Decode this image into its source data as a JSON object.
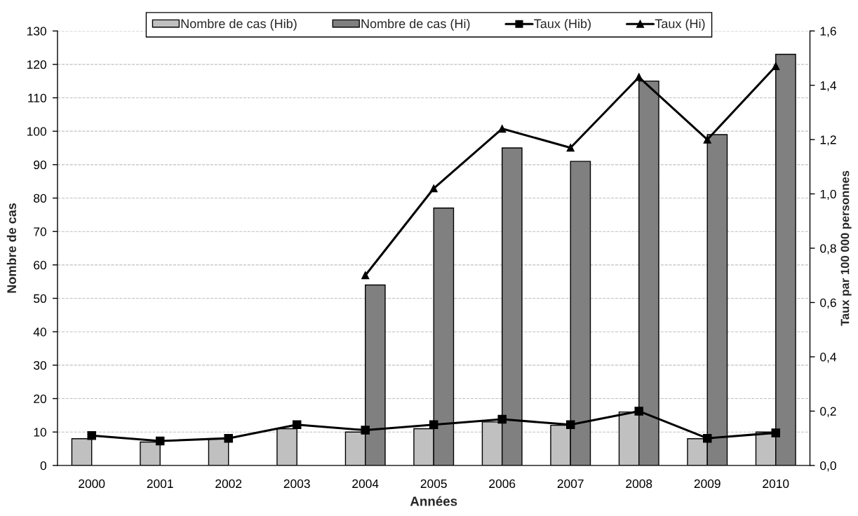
{
  "chart_data": {
    "type": "bar",
    "xlabel": "Années",
    "ylabel": "Nombre de cas",
    "y2label": "Taux par 100 000 personnes",
    "categories": [
      "2000",
      "2001",
      "2002",
      "2003",
      "2004",
      "2005",
      "2006",
      "2007",
      "2008",
      "2009",
      "2010"
    ],
    "series": [
      {
        "name": "Nombre de cas (Hib)",
        "color": "#c0c0c0",
        "values": [
          8,
          7,
          8,
          11,
          10,
          11,
          13,
          12,
          16,
          8,
          10
        ]
      },
      {
        "name": "Nombre de cas (Hi)",
        "color": "#808080",
        "values": [
          null,
          null,
          null,
          null,
          54,
          77,
          95,
          91,
          115,
          99,
          123
        ]
      },
      {
        "name": "Taux (Hib)",
        "type": "line",
        "axis": "y2",
        "color": "#000000",
        "marker": "square",
        "values": [
          0.11,
          0.09,
          0.1,
          0.15,
          0.13,
          0.15,
          0.17,
          0.15,
          0.2,
          0.1,
          0.12
        ]
      },
      {
        "name": "Taux (Hi)",
        "type": "line",
        "axis": "y2",
        "color": "#000000",
        "marker": "triangle",
        "values": [
          null,
          null,
          null,
          null,
          0.7,
          1.02,
          1.24,
          1.17,
          1.43,
          1.2,
          1.47
        ]
      }
    ],
    "ylim": [
      0,
      130
    ],
    "yticks": [
      0,
      10,
      20,
      30,
      40,
      50,
      60,
      70,
      80,
      90,
      100,
      110,
      120,
      130
    ],
    "y2lim": [
      0,
      1.6
    ],
    "y2ticks": [
      {
        "value": 0,
        "label": "0,0"
      },
      {
        "value": 0.2,
        "label": "0,2"
      },
      {
        "value": 0.4,
        "label": "0,4"
      },
      {
        "value": 0.6,
        "label": "0,6"
      },
      {
        "value": 0.8,
        "label": "0,8"
      },
      {
        "value": 1.0,
        "label": "1,0"
      },
      {
        "value": 1.2,
        "label": "1,2"
      },
      {
        "value": 1.4,
        "label": "1,4"
      },
      {
        "value": 1.6,
        "label": "1,6"
      }
    ],
    "grid": "y",
    "legend": "top",
    "line_style": "solid"
  }
}
